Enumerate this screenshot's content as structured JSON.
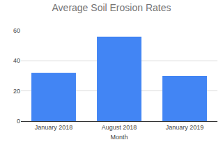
{
  "chart_data": {
    "type": "bar",
    "title": "Average Soil Erosion Rates",
    "xlabel": "Month",
    "categories": [
      "January 2018",
      "August 2018",
      "January 2019"
    ],
    "values": [
      32,
      56,
      30
    ],
    "color": "#4285f4",
    "ylim": [
      0,
      60
    ],
    "yticks": [
      0,
      20,
      40,
      60
    ],
    "grid": true
  }
}
